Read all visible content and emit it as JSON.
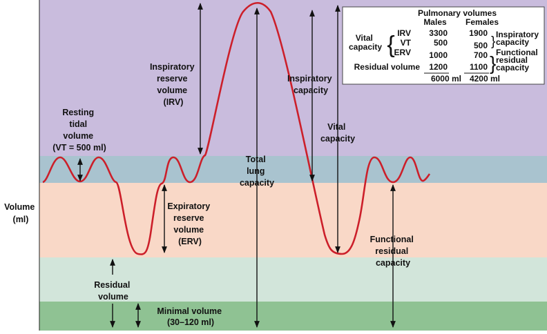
{
  "colors": {
    "irv_zone": "#c9bcdd",
    "vt_zone": "#a9c3cf",
    "erv_zone": "#f9d8c7",
    "rv_zone": "#d2e5da",
    "minimal_zone": "#8fc293",
    "curve": "#cc1f2a"
  },
  "y_axis": [
    "Volume",
    "(ml)"
  ],
  "labels": {
    "resting_tidal": [
      "Resting",
      "tidal",
      "volume",
      "(VT = 500 ml)"
    ],
    "irv": [
      "Inspiratory",
      "reserve",
      "volume",
      "(IRV)"
    ],
    "erv": [
      "Expiratory",
      "reserve",
      "volume",
      "(ERV)"
    ],
    "total_lung": [
      "Total",
      "lung",
      "capacity"
    ],
    "inspiratory_capacity": [
      "Inspiratory",
      "capacity"
    ],
    "vital_capacity": [
      "Vital",
      "capacity"
    ],
    "frc": [
      "Functional",
      "residual",
      "capacity"
    ],
    "residual": [
      "Residual",
      "volume"
    ],
    "minimal": [
      "Minimal volume",
      "(30–120 ml)"
    ]
  },
  "table": {
    "title": "Pulmonary volumes",
    "col_males": "Males",
    "col_females": "Females",
    "vital_label": [
      "Vital",
      "capacity"
    ],
    "rows": [
      {
        "name": "IRV",
        "males": "3300",
        "females": "1900"
      },
      {
        "name": "VT",
        "males": "500",
        "females": "500"
      },
      {
        "name": "ERV",
        "males": "1000",
        "females": "700"
      },
      {
        "name": "Residual volume",
        "males": "1200",
        "females": "1100"
      }
    ],
    "totals": {
      "males": "6000 ml",
      "females": "4200 ml"
    },
    "inspiratory_capacity": [
      "Inspiratory",
      "capacity"
    ],
    "frc": [
      "Functional",
      "residual",
      "capacity"
    ]
  }
}
